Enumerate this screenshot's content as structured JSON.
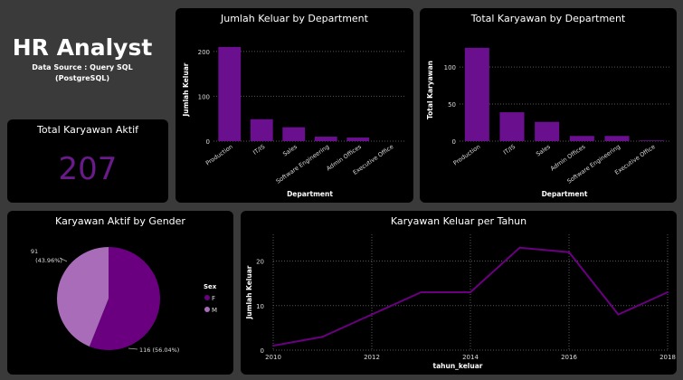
{
  "header": {
    "title": "HR Analyst",
    "subtitle1": "Data Source : Query SQL",
    "subtitle2": "(PostgreSQL)"
  },
  "kpi": {
    "title": "Total Karyawan Aktif",
    "value": "207"
  },
  "colors": {
    "bar": "#6a0f8e",
    "female": "#6a0080",
    "male": "#a86cb8",
    "line": "#6a0080"
  },
  "chart_data": [
    {
      "type": "bar",
      "title": "Jumlah Keluar by Department",
      "xlabel": "Department",
      "ylabel": "Jumlah Keluar",
      "categories": [
        "Production",
        "IT/IS",
        "Sales",
        "Software Engineering",
        "Admin Offices",
        "Executive Office"
      ],
      "values": [
        210,
        49,
        31,
        10,
        8,
        0
      ],
      "ylim": [
        0,
        230
      ],
      "yticks": [
        0,
        100,
        200
      ],
      "grid": true
    },
    {
      "type": "bar",
      "title": "Total Karyawan by Department",
      "xlabel": "Department",
      "ylabel": "Total Karyawan",
      "categories": [
        "Production",
        "IT/IS",
        "Sales",
        "Admin Offices",
        "Software Engineering",
        "Executive Office"
      ],
      "values": [
        126,
        39,
        26,
        7,
        7,
        1
      ],
      "ylim": [
        0,
        138
      ],
      "yticks": [
        0,
        50,
        100
      ],
      "grid": true
    },
    {
      "type": "pie",
      "title": "Karyawan Aktif by Gender",
      "legend_title": "Sex",
      "legend_placement": "right",
      "slices": [
        {
          "label": "F",
          "value": 116,
          "percent": "56.04%"
        },
        {
          "label": "M",
          "value": 91,
          "percent": "43.96%"
        }
      ]
    },
    {
      "type": "line",
      "title": "Karyawan Keluar per Tahun",
      "xlabel": "tahun_keluar",
      "ylabel": "Jumlah Keluar",
      "x": [
        2010,
        2011,
        2012,
        2013,
        2014,
        2015,
        2016,
        2017,
        2018
      ],
      "y": [
        1,
        3,
        8,
        13,
        13,
        23,
        22,
        8,
        13
      ],
      "xlim": [
        2010,
        2018
      ],
      "ylim": [
        0,
        26
      ],
      "xticks": [
        2010,
        2012,
        2014,
        2016,
        2018
      ],
      "yticks": [
        0,
        10,
        20
      ],
      "grid": true
    }
  ]
}
